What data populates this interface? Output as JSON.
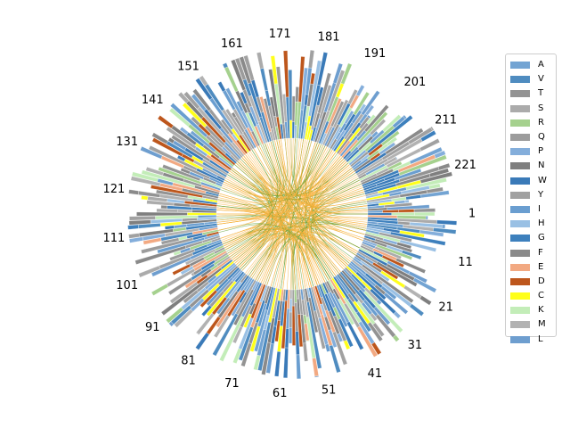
{
  "chart_data": {
    "type": "circular-sequence-logo",
    "title": "",
    "positions": {
      "start": 1,
      "end": 230,
      "tick_step": 10,
      "tick_labels": [
        "1",
        "11",
        "21",
        "31",
        "41",
        "51",
        "61",
        "71",
        "81",
        "91",
        "101",
        "111",
        "121",
        "131",
        "141",
        "151",
        "161",
        "171",
        "181",
        "191",
        "201",
        "211",
        "221"
      ]
    },
    "legend": {
      "placement": "right",
      "entries": [
        {
          "label": "A",
          "color": "#73a4d3"
        },
        {
          "label": "V",
          "color": "#4f8cc0"
        },
        {
          "label": "T",
          "color": "#939393"
        },
        {
          "label": "S",
          "color": "#ababab"
        },
        {
          "label": "R",
          "color": "#a5d18e"
        },
        {
          "label": "Q",
          "color": "#9c9c9c"
        },
        {
          "label": "P",
          "color": "#84aedb"
        },
        {
          "label": "N",
          "color": "#7f7f7f"
        },
        {
          "label": "W",
          "color": "#3a7ab8"
        },
        {
          "label": "Y",
          "color": "#a1a1a1"
        },
        {
          "label": "I",
          "color": "#6a9ed0"
        },
        {
          "label": "H",
          "color": "#99c0e4"
        },
        {
          "label": "G",
          "color": "#3d80bd"
        },
        {
          "label": "F",
          "color": "#8a8a8a"
        },
        {
          "label": "E",
          "color": "#f2a982"
        },
        {
          "label": "D",
          "color": "#bd561c"
        },
        {
          "label": "C",
          "color": "#ffff1a"
        },
        {
          "label": "K",
          "color": "#c3edb8"
        },
        {
          "label": "M",
          "color": "#b2b2b2"
        },
        {
          "label": "L",
          "color": "#6e9ecf"
        }
      ]
    },
    "links": {
      "colors": [
        "#f6b13a",
        "#5e9e2e"
      ]
    }
  }
}
